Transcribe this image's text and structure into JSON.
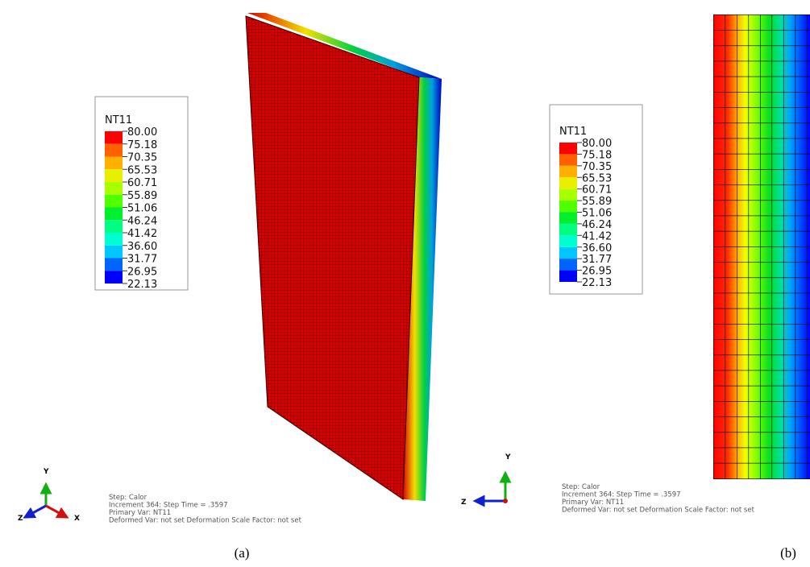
{
  "panels": [
    {
      "caption": "(a)",
      "legend": {
        "title": "NT11",
        "labels": [
          "80.00",
          "75.18",
          "70.35",
          "65.53",
          "60.71",
          "55.89",
          "51.06",
          "46.24",
          "41.42",
          "36.60",
          "31.77",
          "26.95",
          "22.13"
        ]
      },
      "info": [
        "Step: Calor",
        "Increment    364: Step Time =    .3597",
        "Primary Var: NT11",
        "Deformed Var: not set   Deformation Scale Factor: not set"
      ],
      "axes": [
        "Y",
        "Z",
        "X"
      ]
    },
    {
      "caption": "(b)",
      "legend": {
        "title": "NT11",
        "labels": [
          "80.00",
          "75.18",
          "70.35",
          "65.53",
          "60.71",
          "55.89",
          "51.06",
          "46.24",
          "41.42",
          "36.60",
          "31.77",
          "26.95",
          "22.13"
        ]
      },
      "info": [
        "Step: Calor",
        "Increment    364: Step Time =    .3597",
        "Primary Var: NT11",
        "Deformed Var: not set   Deformation Scale Factor: not set"
      ],
      "axes": [
        "Y",
        "Z"
      ]
    }
  ]
}
